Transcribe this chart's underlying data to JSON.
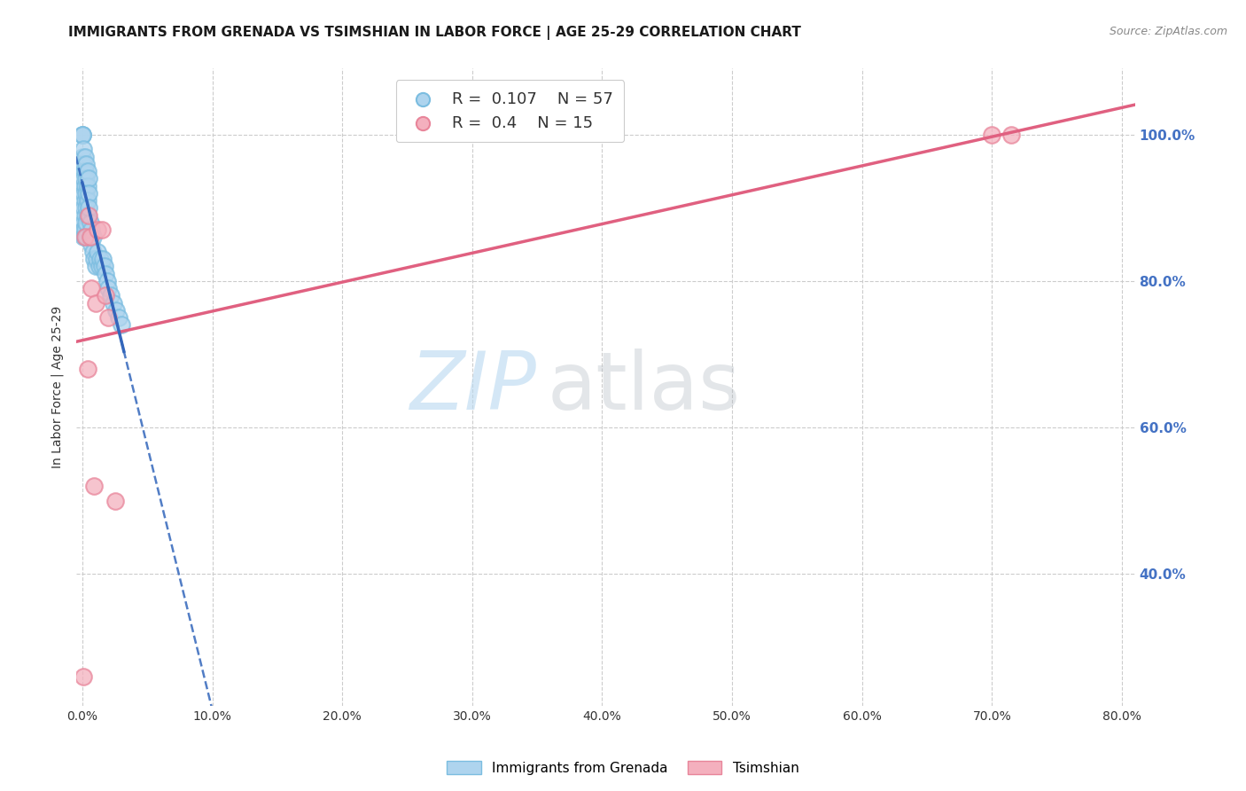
{
  "title": "IMMIGRANTS FROM GRENADA VS TSIMSHIAN IN LABOR FORCE | AGE 25-29 CORRELATION CHART",
  "source": "Source: ZipAtlas.com",
  "ylabel": "In Labor Force | Age 25-29",
  "x_tick_labels": [
    "0.0%",
    "10.0%",
    "20.0%",
    "30.0%",
    "40.0%",
    "50.0%",
    "60.0%",
    "70.0%",
    "80.0%"
  ],
  "x_tick_values": [
    0.0,
    0.1,
    0.2,
    0.3,
    0.4,
    0.5,
    0.6,
    0.7,
    0.8
  ],
  "y_tick_labels": [
    "100.0%",
    "80.0%",
    "60.0%",
    "40.0%"
  ],
  "y_tick_values": [
    1.0,
    0.8,
    0.6,
    0.4
  ],
  "xlim": [
    -0.005,
    0.81
  ],
  "ylim": [
    0.22,
    1.09
  ],
  "grenada_R": 0.107,
  "grenada_N": 57,
  "tsimshian_R": 0.4,
  "tsimshian_N": 15,
  "grenada_color": "#7bbde0",
  "grenada_fill": "#aed4ee",
  "tsimshian_color": "#e8859a",
  "tsimshian_fill": "#f4b0be",
  "grenada_line_color": "#3366bb",
  "tsimshian_line_color": "#e06080",
  "background_color": "#ffffff",
  "grid_color": "#cccccc",
  "legend_label_grenada": "Immigrants from Grenada",
  "legend_label_tsimshian": "Tsimshian",
  "title_fontsize": 11,
  "axis_label_fontsize": 10,
  "tick_fontsize": 10,
  "source_fontsize": 9,
  "grenada_x": [
    0.0,
    0.0,
    0.0,
    0.0,
    0.0,
    0.0,
    0.001,
    0.001,
    0.001,
    0.001,
    0.001,
    0.001,
    0.001,
    0.001,
    0.002,
    0.002,
    0.002,
    0.002,
    0.002,
    0.002,
    0.002,
    0.003,
    0.003,
    0.003,
    0.003,
    0.003,
    0.003,
    0.004,
    0.004,
    0.004,
    0.004,
    0.005,
    0.005,
    0.005,
    0.006,
    0.006,
    0.007,
    0.007,
    0.008,
    0.008,
    0.009,
    0.01,
    0.011,
    0.012,
    0.013,
    0.014,
    0.015,
    0.016,
    0.017,
    0.018,
    0.019,
    0.02,
    0.022,
    0.024,
    0.026,
    0.028,
    0.03
  ],
  "grenada_y": [
    1.0,
    1.0,
    1.0,
    0.97,
    0.95,
    0.93,
    0.98,
    0.96,
    0.94,
    0.92,
    0.9,
    0.88,
    0.87,
    0.86,
    0.97,
    0.95,
    0.93,
    0.91,
    0.89,
    0.87,
    0.86,
    0.96,
    0.94,
    0.92,
    0.9,
    0.88,
    0.86,
    0.95,
    0.93,
    0.91,
    0.89,
    0.94,
    0.92,
    0.9,
    0.88,
    0.86,
    0.87,
    0.85,
    0.86,
    0.84,
    0.83,
    0.82,
    0.83,
    0.84,
    0.82,
    0.83,
    0.82,
    0.83,
    0.82,
    0.81,
    0.8,
    0.79,
    0.78,
    0.77,
    0.76,
    0.75,
    0.74
  ],
  "tsimshian_x": [
    0.001,
    0.002,
    0.004,
    0.005,
    0.006,
    0.007,
    0.009,
    0.01,
    0.012,
    0.015,
    0.018,
    0.02,
    0.025,
    0.7,
    0.715
  ],
  "tsimshian_y": [
    0.26,
    0.86,
    0.68,
    0.89,
    0.86,
    0.79,
    0.52,
    0.77,
    0.87,
    0.87,
    0.78,
    0.75,
    0.5,
    1.0,
    1.0
  ],
  "grenada_line_x0": 0.0,
  "grenada_line_x1": 0.81,
  "tsimshian_line_x0": 0.0,
  "tsimshian_line_x1": 0.81
}
